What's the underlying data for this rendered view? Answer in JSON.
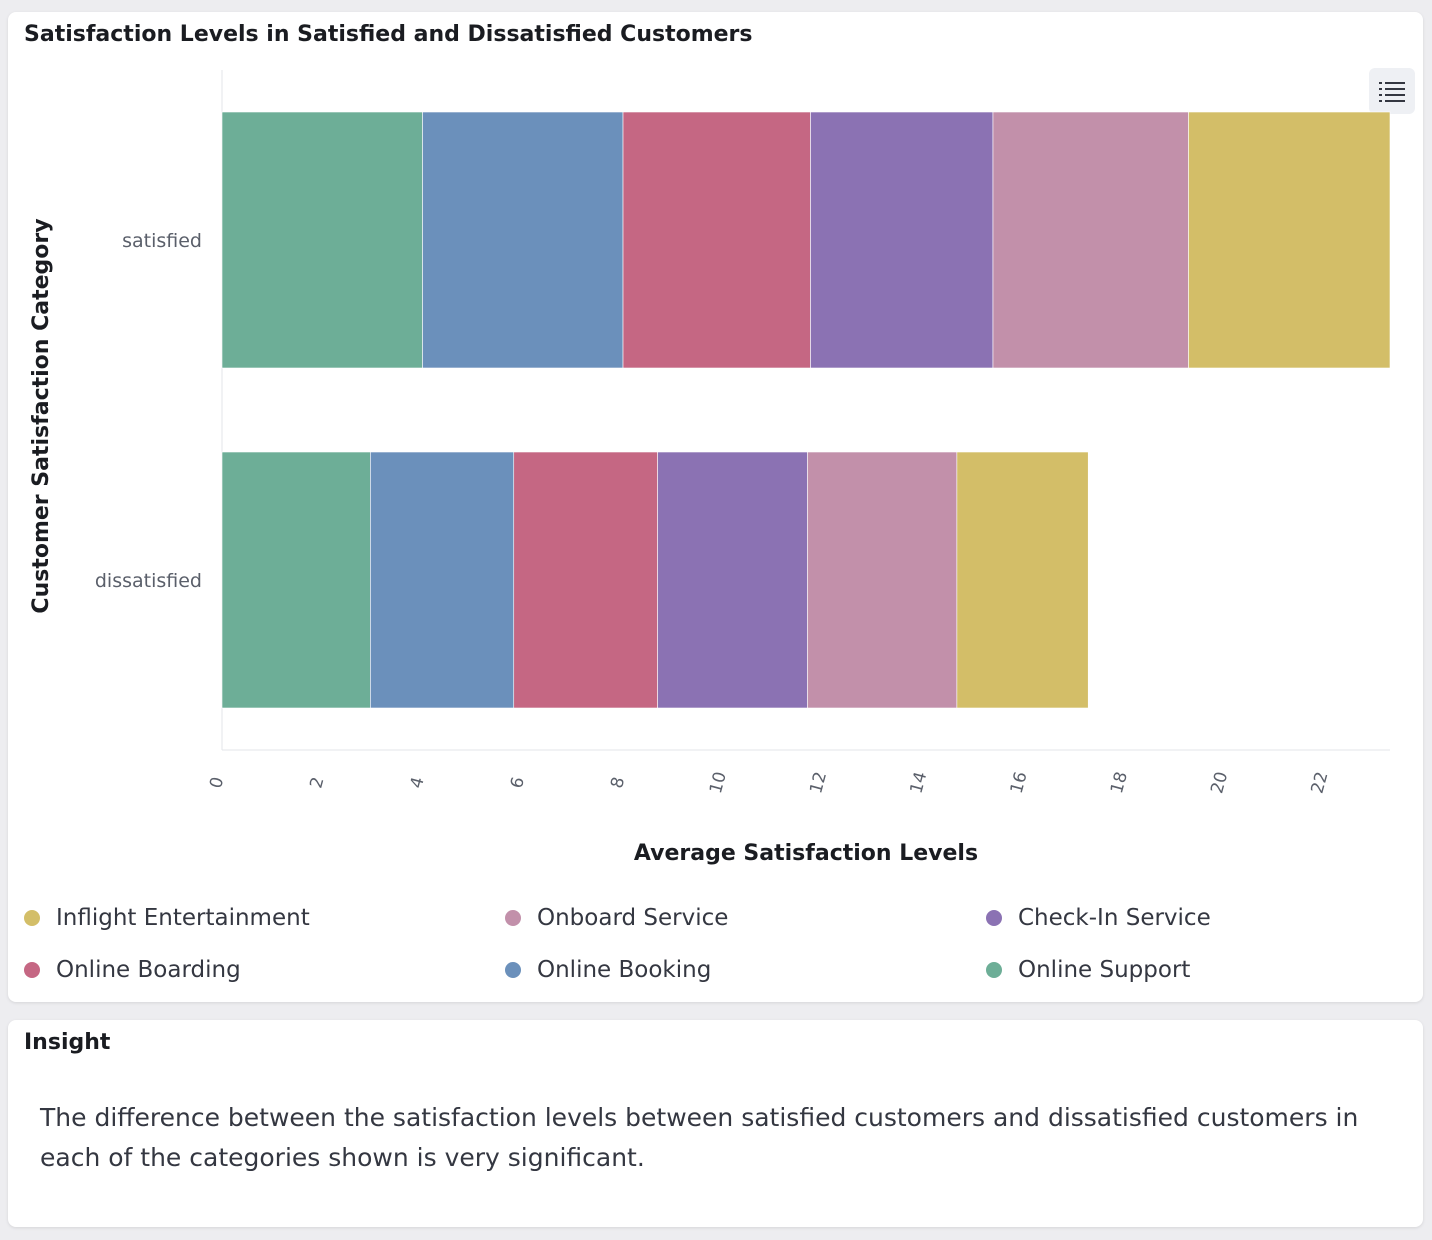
{
  "chart_panel": {
    "title": "Satisfaction Levels in Satisfied and Dissatisfied Customers",
    "legend_toggle_icon": "list-icon"
  },
  "chart_data": {
    "type": "bar",
    "orientation": "horizontal",
    "stacked": true,
    "title": "Satisfaction Levels in Satisfied and Dissatisfied Customers",
    "xlabel": "Average Satisfaction Levels",
    "ylabel": "Customer Satisfaction Category",
    "xlim": [
      0,
      23.3
    ],
    "x_ticks": [
      "0",
      "2",
      "4",
      "6",
      "8",
      "10",
      "12",
      "14",
      "16",
      "18",
      "20",
      "22"
    ],
    "categories": [
      "satisfied",
      "dissatisfied"
    ],
    "series": [
      {
        "name": "Online Support",
        "color": "#6dae97",
        "values": [
          4.0,
          2.96
        ]
      },
      {
        "name": "Online Booking",
        "color": "#6b90bb",
        "values": [
          4.0,
          2.86
        ]
      },
      {
        "name": "Online Boarding",
        "color": "#c56783",
        "values": [
          3.74,
          2.87
        ]
      },
      {
        "name": "Check-In Service",
        "color": "#8b72b3",
        "values": [
          3.64,
          2.99
        ]
      },
      {
        "name": "Onboard Service",
        "color": "#c290aa",
        "values": [
          3.9,
          2.98
        ]
      },
      {
        "name": "Inflight Entertainment",
        "color": "#d3be68",
        "values": [
          4.02,
          2.62
        ]
      }
    ],
    "legend": {
      "position": "bottom",
      "order": [
        "Inflight Entertainment",
        "Onboard Service",
        "Check-In Service",
        "Online Boarding",
        "Online Booking",
        "Online Support"
      ]
    },
    "grid": false
  },
  "insight": {
    "title": "Insight",
    "text": "The difference between the satisfaction levels between satisfied customers and dissatisfied customers in each of the categories shown is very significant."
  }
}
